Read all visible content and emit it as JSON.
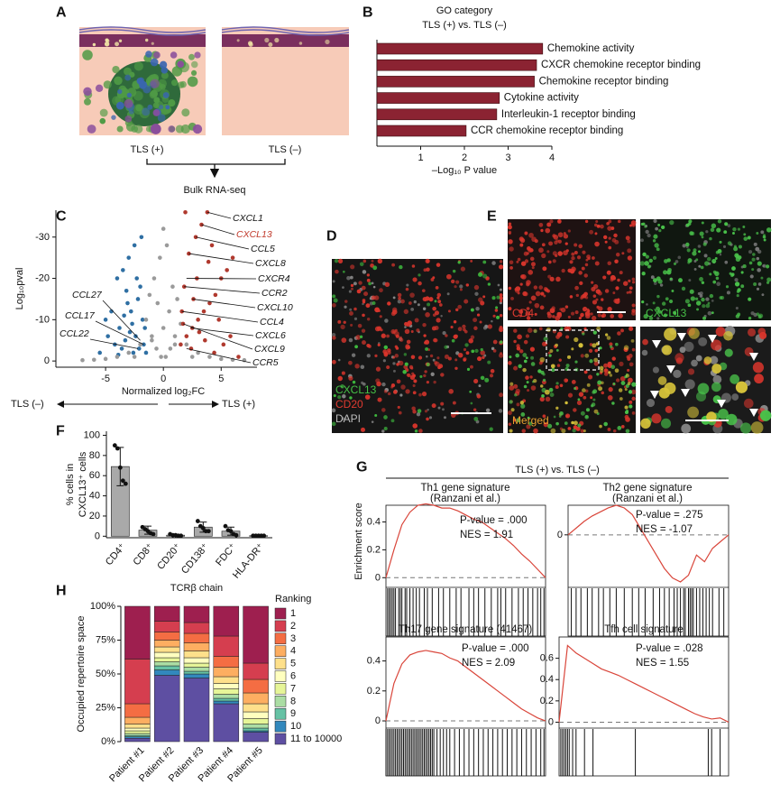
{
  "panel_labels": [
    "A",
    "B",
    "C",
    "D",
    "E",
    "F",
    "G",
    "H"
  ],
  "panel_a": {
    "groups": [
      "TLS (+)",
      "TLS (–)"
    ],
    "method": "Bulk RNA-seq"
  },
  "panel_d": {
    "channels": [
      {
        "name": "CXCL13",
        "color": "#46c046"
      },
      {
        "name": "CD20",
        "color": "#e03a30"
      },
      {
        "name": "DAPI",
        "color": "#bdbdbd"
      }
    ]
  },
  "panel_e": {
    "labels": [
      {
        "text": "CD4",
        "color": "#e03a30"
      },
      {
        "text": "CXCL13",
        "color": "#46c046"
      },
      {
        "text": "Merged",
        "color": "#e8a030"
      }
    ]
  },
  "panel_g": {
    "header": "TLS (+) vs. TLS (–)",
    "y_label": "Enrichment score"
  },
  "chart_data": [
    {
      "type": "bar",
      "orientation": "horizontal",
      "title": "GO category",
      "subtitle": "TLS (+) vs. TLS (–)",
      "categories": [
        "Chemokine activity",
        "CXCR chemokine receptor binding",
        "Chemokine receptor binding",
        "Cytokine activity",
        "Interleukin-1 receptor binding",
        "CCR chemokine receptor binding"
      ],
      "values": [
        3.79,
        3.65,
        3.6,
        2.8,
        2.74,
        2.04
      ],
      "color": "#8b2332",
      "xlim": [
        0,
        4
      ],
      "xticks": [
        1,
        2,
        3,
        4
      ],
      "x_label": "–Log₁₀ P value"
    },
    {
      "type": "scatter",
      "x_label": "Normalized log₂FC",
      "y_label": "Log₁₀pval",
      "direction_labels": [
        "TLS (–)",
        "TLS (+)"
      ],
      "xlim": [
        -9.3,
        8.1
      ],
      "ylim": [
        1.5,
        -36.5
      ],
      "xticks": [
        -5,
        0,
        5
      ],
      "yticks": [
        -30,
        -20,
        -10,
        0
      ],
      "series": [
        {
          "color": "#2f6fa3",
          "x": [
            -2.5,
            -3,
            -3.5,
            -4,
            -2,
            -2.2,
            -3.1,
            -4.5,
            -5,
            -2.8,
            -3.8,
            -1.8,
            -2.4,
            -3.3,
            -4.2,
            -1.6,
            -2.1,
            -2.9,
            -3.6,
            -5.5,
            -1.7,
            -2.6,
            -3.9,
            -2.3,
            -1.9,
            -3.2,
            -4.8,
            -2.7,
            -1.5,
            -3.4
          ],
          "values": [
            -28,
            -25,
            -22,
            -20,
            -18,
            -15,
            -14,
            -12,
            -10,
            -12,
            -8,
            -10,
            -6,
            -5,
            -4,
            -8,
            -3,
            -7,
            -3,
            -2,
            -4,
            -2,
            -1.5,
            -20,
            -30,
            -17,
            -6,
            -9,
            -2,
            -11
          ]
        },
        {
          "color": "#9a9a9a",
          "x": [
            -3,
            -2,
            -1,
            0,
            1,
            2,
            3,
            -1.5,
            -0.5,
            0.5,
            1.5,
            -2.5,
            2.5,
            -0.8,
            0.8,
            -0.3,
            0.3,
            -1.2,
            1.2,
            0,
            -4,
            4,
            -5,
            5,
            -0.6,
            0.6,
            -1,
            1,
            -0.2,
            0.2,
            -6,
            6,
            -7,
            7
          ],
          "values": [
            -2,
            -4,
            -6,
            -8,
            -6,
            -4,
            -2,
            -10,
            -14,
            -12,
            -9,
            -1,
            -1,
            -20,
            -18,
            -25,
            -28,
            -16,
            -15,
            -32,
            -1,
            -1,
            -0.5,
            -0.5,
            -3,
            -3,
            -5,
            -4,
            -1,
            -1,
            -0.3,
            -0.3,
            -0.2,
            -0.2
          ]
        },
        {
          "color": "#b0392e",
          "x": [
            1.5,
            2,
            2.5,
            3,
            3.5,
            4,
            4.5,
            5,
            5.5,
            6,
            1.8,
            2.2,
            2.8,
            3.3,
            3.8,
            4.2,
            4.8,
            1.6,
            2.4,
            3.1,
            3.6,
            4.4,
            5.2,
            2.6,
            1.7,
            2.9,
            3.9,
            1.9,
            5.8,
            6.5
          ],
          "values": [
            -4,
            -6,
            -8,
            -10,
            -12,
            -14,
            -16,
            -20,
            -22,
            -25,
            -18,
            -26,
            -30,
            -33,
            -36,
            -28,
            -10,
            -12,
            -3,
            -7,
            -5,
            -2,
            -4,
            -15,
            -9,
            -20,
            -24,
            -36,
            -6,
            -1
          ]
        }
      ],
      "annotations": [
        {
          "text": "CXCL1",
          "x": 3.8,
          "y": -36
        },
        {
          "text": "CXCL13",
          "x": 3.3,
          "y": -33,
          "color": "#c0392b"
        },
        {
          "text": "CCL5",
          "x": 2.8,
          "y": -30
        },
        {
          "text": "CXCL8",
          "x": 2.2,
          "y": -26
        },
        {
          "text": "CXCR4",
          "x": 2.0,
          "y": -20
        },
        {
          "text": "CCR2",
          "x": 1.8,
          "y": -18
        },
        {
          "text": "CXCL10",
          "x": 2.5,
          "y": -15
        },
        {
          "text": "CCL4",
          "x": 1.6,
          "y": -12
        },
        {
          "text": "CXCL6",
          "x": 2.4,
          "y": -8
        },
        {
          "text": "CXCL9",
          "x": 1.7,
          "y": -9
        },
        {
          "text": "CCR5",
          "x": 2.0,
          "y": -3
        },
        {
          "text": "CCL27",
          "x": -2.0,
          "y": -5
        },
        {
          "text": "CCL17",
          "x": -1.7,
          "y": -4
        },
        {
          "text": "CCL22",
          "x": -2.2,
          "y": -3
        }
      ]
    },
    {
      "type": "bar",
      "y_label": [
        "% cells in",
        "CXCL13⁺ cells"
      ],
      "categories": [
        "CD4⁺",
        "CD8⁺",
        "CD20⁺",
        "CD138⁺",
        "FDC⁺",
        "HLA-DR⁺"
      ],
      "values": [
        69,
        6,
        1,
        9,
        5,
        0.5
      ],
      "errors": [
        19,
        4,
        1,
        5,
        4,
        0.5
      ],
      "points": [
        [
          90,
          87,
          68,
          55,
          52
        ],
        [
          9,
          7,
          5,
          3,
          2
        ],
        [
          2,
          1,
          1,
          0.5,
          0.5
        ],
        [
          15,
          10,
          8,
          5,
          5
        ],
        [
          10,
          6,
          5,
          2,
          1
        ],
        [
          0.5,
          0.5,
          0.5,
          0.5,
          0.5
        ]
      ],
      "color": "#a9a9a9",
      "ylim": [
        -1.5,
        104
      ],
      "yticks": [
        0,
        20,
        40,
        60,
        80,
        100
      ]
    },
    {
      "type": "line",
      "title": "Th1 gene signature",
      "subtitle": "(Ranzani et al.)",
      "color": "#d9453a",
      "x": [
        0,
        5,
        10,
        15,
        20,
        25,
        30,
        35,
        40,
        45,
        50,
        55,
        60,
        65,
        70,
        75,
        80,
        85,
        90,
        95,
        100
      ],
      "values": [
        0,
        0.2,
        0.38,
        0.47,
        0.52,
        0.53,
        0.52,
        0.5,
        0.5,
        0.48,
        0.45,
        0.42,
        0.4,
        0.36,
        0.32,
        0.28,
        0.23,
        0.17,
        0.12,
        0.06,
        0
      ],
      "xlim": [
        0,
        100
      ],
      "ylim": [
        -0.05,
        0.52
      ],
      "yticks": [
        0,
        0.2,
        0.4
      ],
      "hits": [
        1,
        2,
        3,
        4,
        5,
        6,
        8,
        9,
        10,
        12,
        13,
        15,
        17,
        19,
        21,
        24,
        26,
        29,
        33,
        36,
        40,
        44,
        47,
        52,
        55,
        58,
        62,
        66,
        70,
        72,
        75,
        79,
        83,
        86,
        89,
        92,
        95,
        97,
        99
      ],
      "annotations": [
        "P-value = .000",
        "NES = 1.91"
      ]
    },
    {
      "type": "line",
      "title": "Th2 gene signature",
      "subtitle": "(Ranzani et al.)",
      "color": "#d9453a",
      "x": [
        0,
        5,
        10,
        15,
        20,
        25,
        30,
        35,
        40,
        45,
        50,
        55,
        60,
        65,
        70,
        75,
        80,
        85,
        90,
        95,
        100
      ],
      "values": [
        0,
        0.05,
        0.1,
        0.14,
        0.17,
        0.2,
        0.22,
        0.2,
        0.15,
        0.05,
        -0.05,
        -0.15,
        -0.25,
        -0.32,
        -0.35,
        -0.3,
        -0.15,
        -0.2,
        -0.1,
        -0.05,
        0
      ],
      "xlim": [
        0,
        100
      ],
      "ylim": [
        -0.37,
        0.22
      ],
      "yticks": [
        0
      ],
      "hits": [
        2,
        5,
        8,
        12,
        15,
        19,
        22,
        26,
        30,
        35,
        40,
        44,
        48,
        53,
        57,
        60,
        63,
        66,
        68,
        70,
        72,
        73,
        75,
        76,
        77,
        78,
        80,
        82,
        84,
        86,
        88,
        90,
        94,
        97
      ],
      "annotations": [
        "P-value = .275",
        "NES = -1.07"
      ]
    },
    {
      "type": "line",
      "title": "Th17 gene signature (41467)",
      "color": "#d9453a",
      "x": [
        0,
        5,
        10,
        15,
        20,
        25,
        30,
        35,
        40,
        45,
        50,
        55,
        60,
        65,
        70,
        75,
        80,
        85,
        90,
        95,
        100
      ],
      "values": [
        0,
        0.25,
        0.38,
        0.44,
        0.46,
        0.47,
        0.46,
        0.45,
        0.42,
        0.4,
        0.36,
        0.32,
        0.28,
        0.24,
        0.2,
        0.16,
        0.12,
        0.08,
        0.05,
        0.02,
        0
      ],
      "xlim": [
        0,
        100
      ],
      "ylim": [
        -0.03,
        0.56
      ],
      "yticks": [
        0,
        0.2,
        0.4
      ],
      "hits": [
        0,
        1,
        2,
        3,
        4,
        5,
        6,
        7,
        8,
        9,
        10,
        11,
        12,
        13,
        14,
        15,
        16,
        17,
        18,
        19,
        20,
        21,
        22,
        23,
        24,
        25,
        26,
        27,
        28,
        29,
        30,
        32,
        34,
        36,
        38,
        40,
        43,
        46,
        49,
        52,
        55,
        58,
        61,
        64,
        67,
        70,
        73,
        76,
        79,
        82,
        85,
        88,
        91,
        94,
        97,
        99
      ],
      "annotations": [
        "P-value = .000",
        "NES = 2.09"
      ]
    },
    {
      "type": "line",
      "title": "Tfh cell signature",
      "color": "#d9453a",
      "x": [
        0,
        5,
        10,
        15,
        20,
        25,
        30,
        35,
        40,
        45,
        50,
        55,
        60,
        65,
        70,
        75,
        80,
        85,
        90,
        95,
        100
      ],
      "values": [
        0,
        0.72,
        0.65,
        0.6,
        0.55,
        0.5,
        0.47,
        0.44,
        0.4,
        0.36,
        0.32,
        0.28,
        0.24,
        0.2,
        0.16,
        0.12,
        0.08,
        0.05,
        0.03,
        0.04,
        0
      ],
      "xlim": [
        0,
        100
      ],
      "ylim": [
        -0.03,
        0.8
      ],
      "yticks": [
        0,
        0.2,
        0.4,
        0.6
      ],
      "hits": [
        1,
        2,
        3,
        4,
        5,
        6,
        8,
        10,
        15,
        20,
        45,
        88,
        90,
        95
      ],
      "annotations": [
        "P-value = .028",
        "NES = 1.55"
      ]
    },
    {
      "type": "stacked_bar",
      "title": "TCRβ chain",
      "y_label": "Occupied repertoire space",
      "legend_title": "Ranking",
      "categories": [
        "Patient #1",
        "Patient #2",
        "Patient #3",
        "Patient #4",
        "Patient #5"
      ],
      "ylim": [
        0,
        100
      ],
      "yticks": [
        {
          "value": 0,
          "label": "0%"
        },
        {
          "value": 25,
          "label": "25%"
        },
        {
          "value": 50,
          "label": "50%"
        },
        {
          "value": 75,
          "label": "75%"
        },
        {
          "value": 100,
          "label": "100%"
        }
      ],
      "series": [
        {
          "name": "1",
          "color": "#9e1f4f",
          "values": [
            39,
            11,
            12,
            22,
            42
          ]
        },
        {
          "name": "2",
          "color": "#d53e4f",
          "values": [
            33,
            8,
            8,
            15,
            12
          ]
        },
        {
          "name": "3",
          "color": "#f46d43",
          "values": [
            10,
            6,
            7,
            8,
            10
          ]
        },
        {
          "name": "4",
          "color": "#fdae61",
          "values": [
            5,
            5,
            6,
            7,
            8
          ]
        },
        {
          "name": "5",
          "color": "#fee08b",
          "values": [
            3,
            4,
            5,
            5,
            6
          ]
        },
        {
          "name": "6",
          "color": "#ffffbf",
          "values": [
            2,
            4,
            4,
            4,
            5
          ]
        },
        {
          "name": "7",
          "color": "#e6f598",
          "values": [
            2,
            3,
            3,
            4,
            4
          ]
        },
        {
          "name": "8",
          "color": "#abdda4",
          "values": [
            1.5,
            3,
            3,
            3,
            3
          ]
        },
        {
          "name": "9",
          "color": "#66c2a5",
          "values": [
            1,
            3,
            2,
            2,
            2
          ]
        },
        {
          "name": "10",
          "color": "#3288bd",
          "values": [
            1,
            4,
            3,
            2,
            1
          ]
        },
        {
          "name": "11 to 10000",
          "color": "#5e4fa2",
          "values": [
            2.5,
            49,
            47,
            28,
            7
          ]
        }
      ]
    }
  ]
}
